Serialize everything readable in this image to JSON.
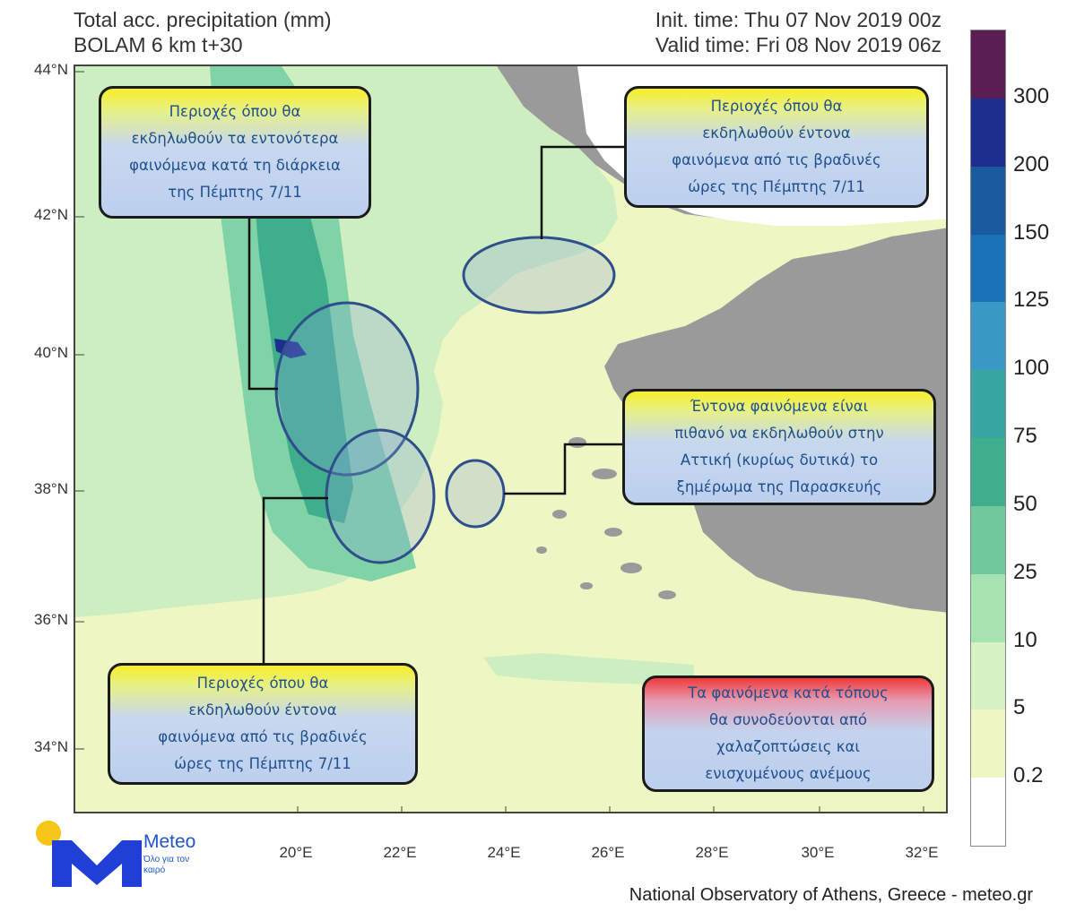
{
  "title": {
    "line1": "Total acc. precipitation (mm)",
    "line2": "BOLAM 6 km t+30"
  },
  "times": {
    "init": "Init. time: Thu 07 Nov 2019 00z",
    "valid": "Valid time: Fri 08 Nov 2019 06z"
  },
  "map": {
    "lat_labels": [
      "44°N",
      "42°N",
      "40°N",
      "38°N",
      "36°N",
      "34°N"
    ],
    "lon_labels": [
      "20°E",
      "22°E",
      "24°E",
      "26°E",
      "28°E",
      "30°E",
      "32°E"
    ],
    "sea_color": "#eef6c4",
    "land_outside_color": "#9a9a9a"
  },
  "legend": {
    "labels": [
      "300",
      "200",
      "150",
      "125",
      "100",
      "75",
      "50",
      "25",
      "10",
      "5",
      "0.2"
    ],
    "colors": [
      "#5a1e52",
      "#1c2f8f",
      "#1a5a9e",
      "#1b72b6",
      "#3a99c4",
      "#36a6a0",
      "#3fae8c",
      "#6fc99a",
      "#a7e3b0",
      "#d7f3c6",
      "#eef6c4",
      "#ffffff"
    ]
  },
  "callouts": {
    "top_left": [
      "Περιοχές όπου θα",
      "εκδηλωθούν τα εντονότερα",
      "φαινόμενα κατά τη διάρκεια",
      "της Πέμπτης 7/11"
    ],
    "top_right": [
      "Περιοχές όπου θα",
      "εκδηλωθούν έντονα",
      "φαινόμενα από τις βραδινές",
      "ώρες της Πέμπτης 7/11"
    ],
    "middle_right": [
      "Έντονα φαινόμενα είναι",
      "πιθανό να εκδηλωθούν στην",
      "Αττική (κυρίως δυτικά) το",
      "ξημέρωμα της Παρασκευής"
    ],
    "bottom_left": [
      "Περιοχές όπου θα",
      "εκδηλωθούν έντονα",
      "φαινόμενα από τις βραδινές",
      "ώρες της Πέμπτης 7/11"
    ],
    "bottom_right": [
      "Τα φαινόμενα κατά τόπους",
      "θα συνοδεύονται από",
      "χαλαζοπτώσεις και",
      "ενισχυμένους ανέμους"
    ]
  },
  "logo": {
    "name": "Meteo",
    "tagline": "Όλο για τον καιρό"
  },
  "credit": "National Observatory of Athens, Greece - meteo.gr"
}
